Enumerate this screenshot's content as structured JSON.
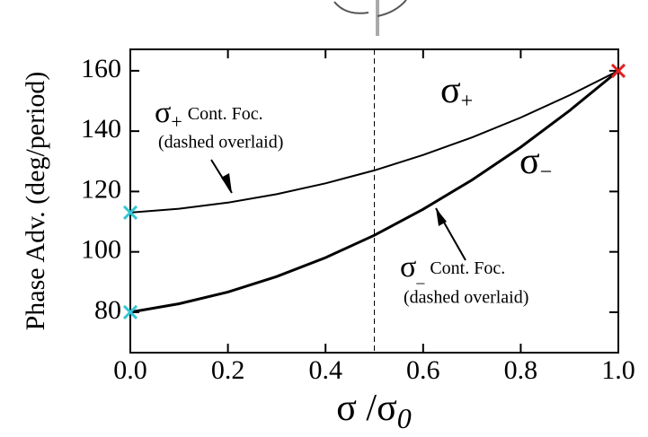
{
  "chart_data": {
    "type": "line",
    "xlabel": {
      "main": "σ /σ",
      "sub": "0"
    },
    "ylabel": "Phase Adv. (deg/period)",
    "x": [
      0,
      0.1,
      0.2,
      0.3,
      0.4,
      0.5,
      0.6,
      0.7,
      0.8,
      0.9,
      1.0
    ],
    "series": [
      {
        "color": "#000000",
        "width": 2,
        "values": [
          113,
          114.3,
          116.3,
          119.1,
          122.7,
          127,
          132.1,
          137.9,
          144.5,
          151.9,
          160
        ]
      },
      {
        "color": "#000000",
        "width": 3,
        "values": [
          80,
          82.8,
          86.7,
          91.8,
          98.1,
          105.5,
          114.1,
          123.8,
          134.7,
          146.8,
          160
        ]
      }
    ],
    "points": [
      {
        "x": 0,
        "y": 113,
        "color": "#33c6d6"
      },
      {
        "x": 0,
        "y": 80,
        "color": "#33c6d6"
      },
      {
        "x": 1.0,
        "y": 160,
        "color": "#e02020"
      }
    ],
    "vline": 0.5,
    "xlim": [
      0,
      1.0
    ],
    "ylim": [
      66.6,
      167.1
    ],
    "xticks": [
      {
        "value": 0,
        "label": "0.0"
      },
      0.2,
      0.4,
      0.6,
      0.8,
      {
        "value": 1.0,
        "label": "1.0"
      }
    ],
    "yticks": [
      80,
      100,
      120,
      140,
      160
    ],
    "annotations": [
      {
        "symbol": "σ",
        "sub": "+"
      },
      {
        "symbol": "σ",
        "sub": "−"
      },
      {
        "symbol": "σ",
        "sub": "+",
        "text": "Cont. Foc.",
        "note": "(dashed overlaid)"
      },
      {
        "symbol": "σ",
        "sub": "_",
        "text": "Cont. Foc.",
        "note": "(dashed overlaid)"
      }
    ]
  }
}
